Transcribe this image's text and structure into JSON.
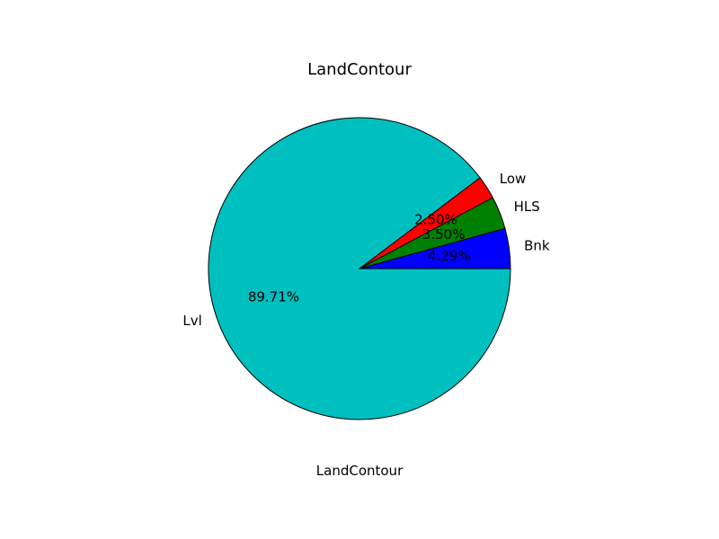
{
  "chart_data": {
    "type": "pie",
    "title": "LandContour",
    "xlabel": "LandContour",
    "categories": [
      "Bnk",
      "HLS",
      "Low",
      "Lvl"
    ],
    "values": [
      4.29,
      3.5,
      2.5,
      89.71
    ],
    "labels": [
      "4.29%",
      "3.50%",
      "2.50%",
      "89.71%"
    ],
    "colors": [
      "#0000ff",
      "#008000",
      "#ff0000",
      "#00bfbf"
    ],
    "start_angle": 0,
    "direction": "counterclockwise",
    "legend": "none"
  }
}
